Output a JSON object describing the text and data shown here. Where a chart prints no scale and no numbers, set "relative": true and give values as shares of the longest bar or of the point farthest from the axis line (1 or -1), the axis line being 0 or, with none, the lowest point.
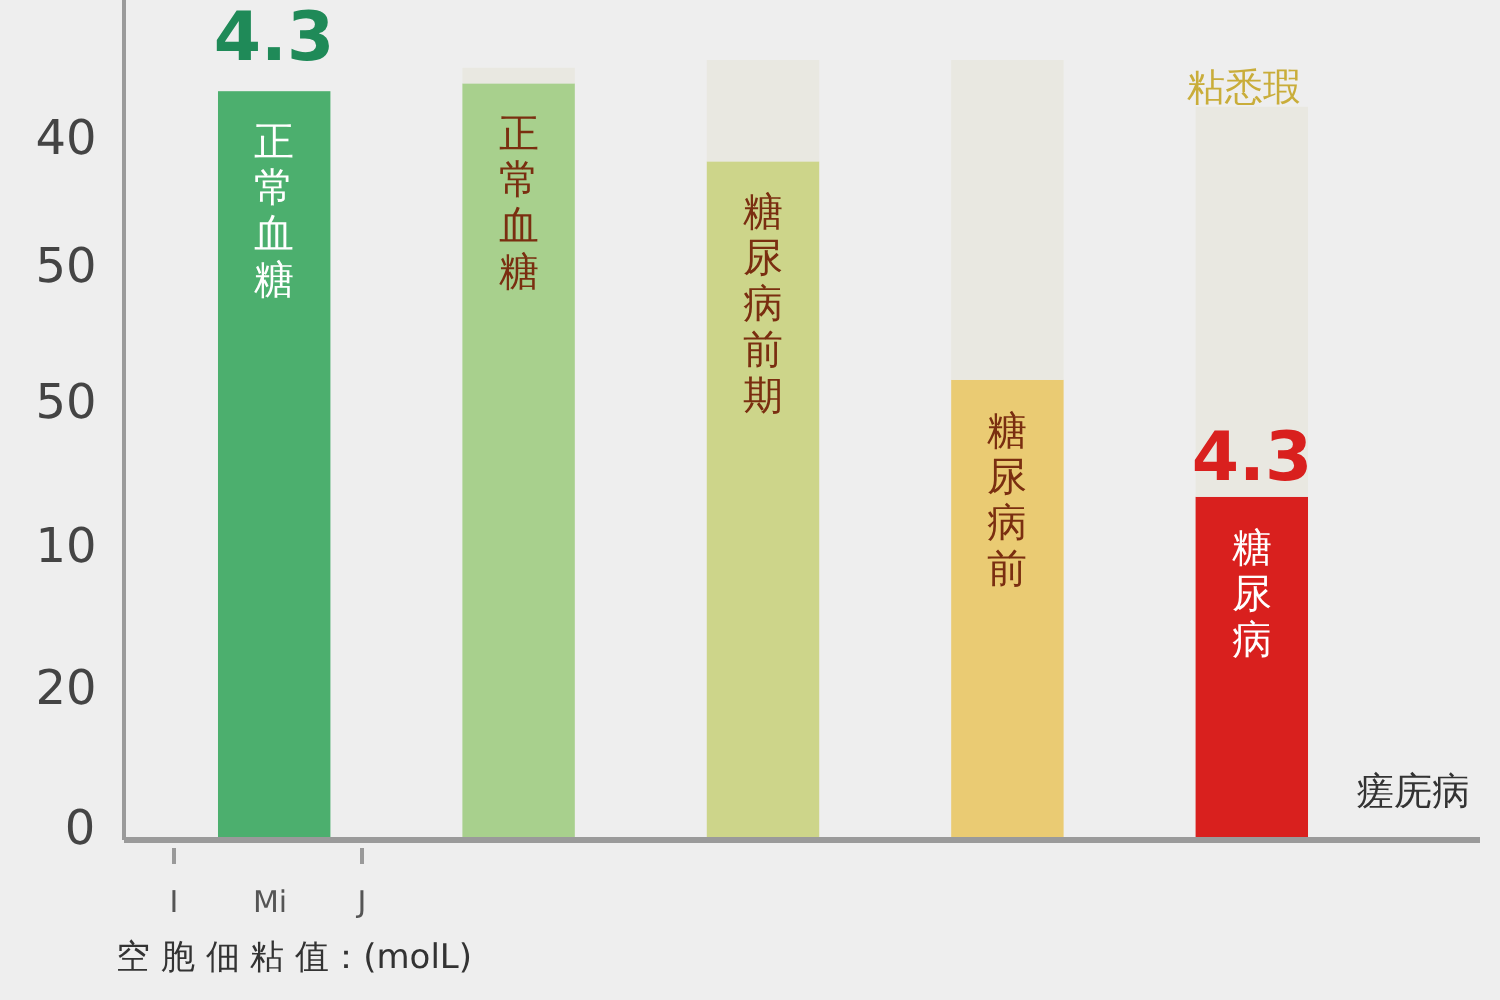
{
  "chart_data": {
    "type": "bar",
    "stacked": true,
    "relative": true,
    "categories": [
      "正常血糖",
      "正常血糖",
      "糖尿病前期",
      "糖尿病前",
      "糖尿病"
    ],
    "series": [
      {
        "colors": [
          "#4caf6e",
          "#a8d08d",
          "#cdd58a",
          "#eacb73",
          "#d9201e"
        ],
        "values": [
          0.96,
          0.97,
          0.87,
          0.59,
          0.44
        ]
      },
      {
        "color": "#e9e8e1",
        "values": [
          0,
          0.02,
          0.13,
          0.41,
          0.5
        ]
      }
    ],
    "xlabel": "空 胞 佃 粘 值：(molL)",
    "annotations": [
      "4.3",
      "4.3",
      "粘悉瑕",
      "瘥庑病",
      "I",
      "Mi",
      "J",
      "40",
      "50",
      "50",
      "10",
      "20",
      "0"
    ]
  }
}
